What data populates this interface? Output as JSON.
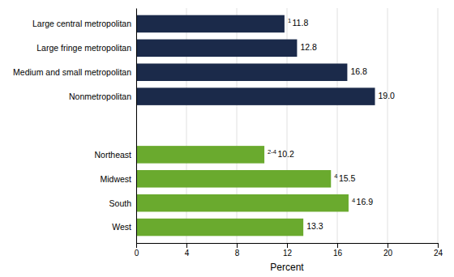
{
  "chart_data": {
    "type": "bar",
    "orientation": "horizontal",
    "categories": [
      "Large central metropolitan",
      "Large fringe metropolitan",
      "Medium and small metropolitan",
      "Nonmetropolitan",
      "Northeast",
      "Midwest",
      "South",
      "West"
    ],
    "values": [
      11.8,
      12.8,
      16.8,
      19.0,
      10.2,
      15.5,
      16.9,
      13.3
    ],
    "value_labels": [
      "11.8",
      "12.8",
      "16.8",
      "19.0",
      "10.2",
      "15.5",
      "16.9",
      "13.3"
    ],
    "footnotes": [
      "1",
      null,
      null,
      null,
      "2-4",
      "4",
      "4",
      null
    ],
    "colors": [
      "#1b2a4a",
      "#1b2a4a",
      "#1b2a4a",
      "#1b2a4a",
      "#6aaa2e",
      "#6aaa2e",
      "#6aaa2e",
      "#6aaa2e"
    ],
    "xlabel": "Percent",
    "xlim": [
      0,
      24
    ],
    "xticks": [
      0,
      4,
      8,
      12,
      16,
      20,
      24
    ],
    "grid": true,
    "data_labels": true
  }
}
